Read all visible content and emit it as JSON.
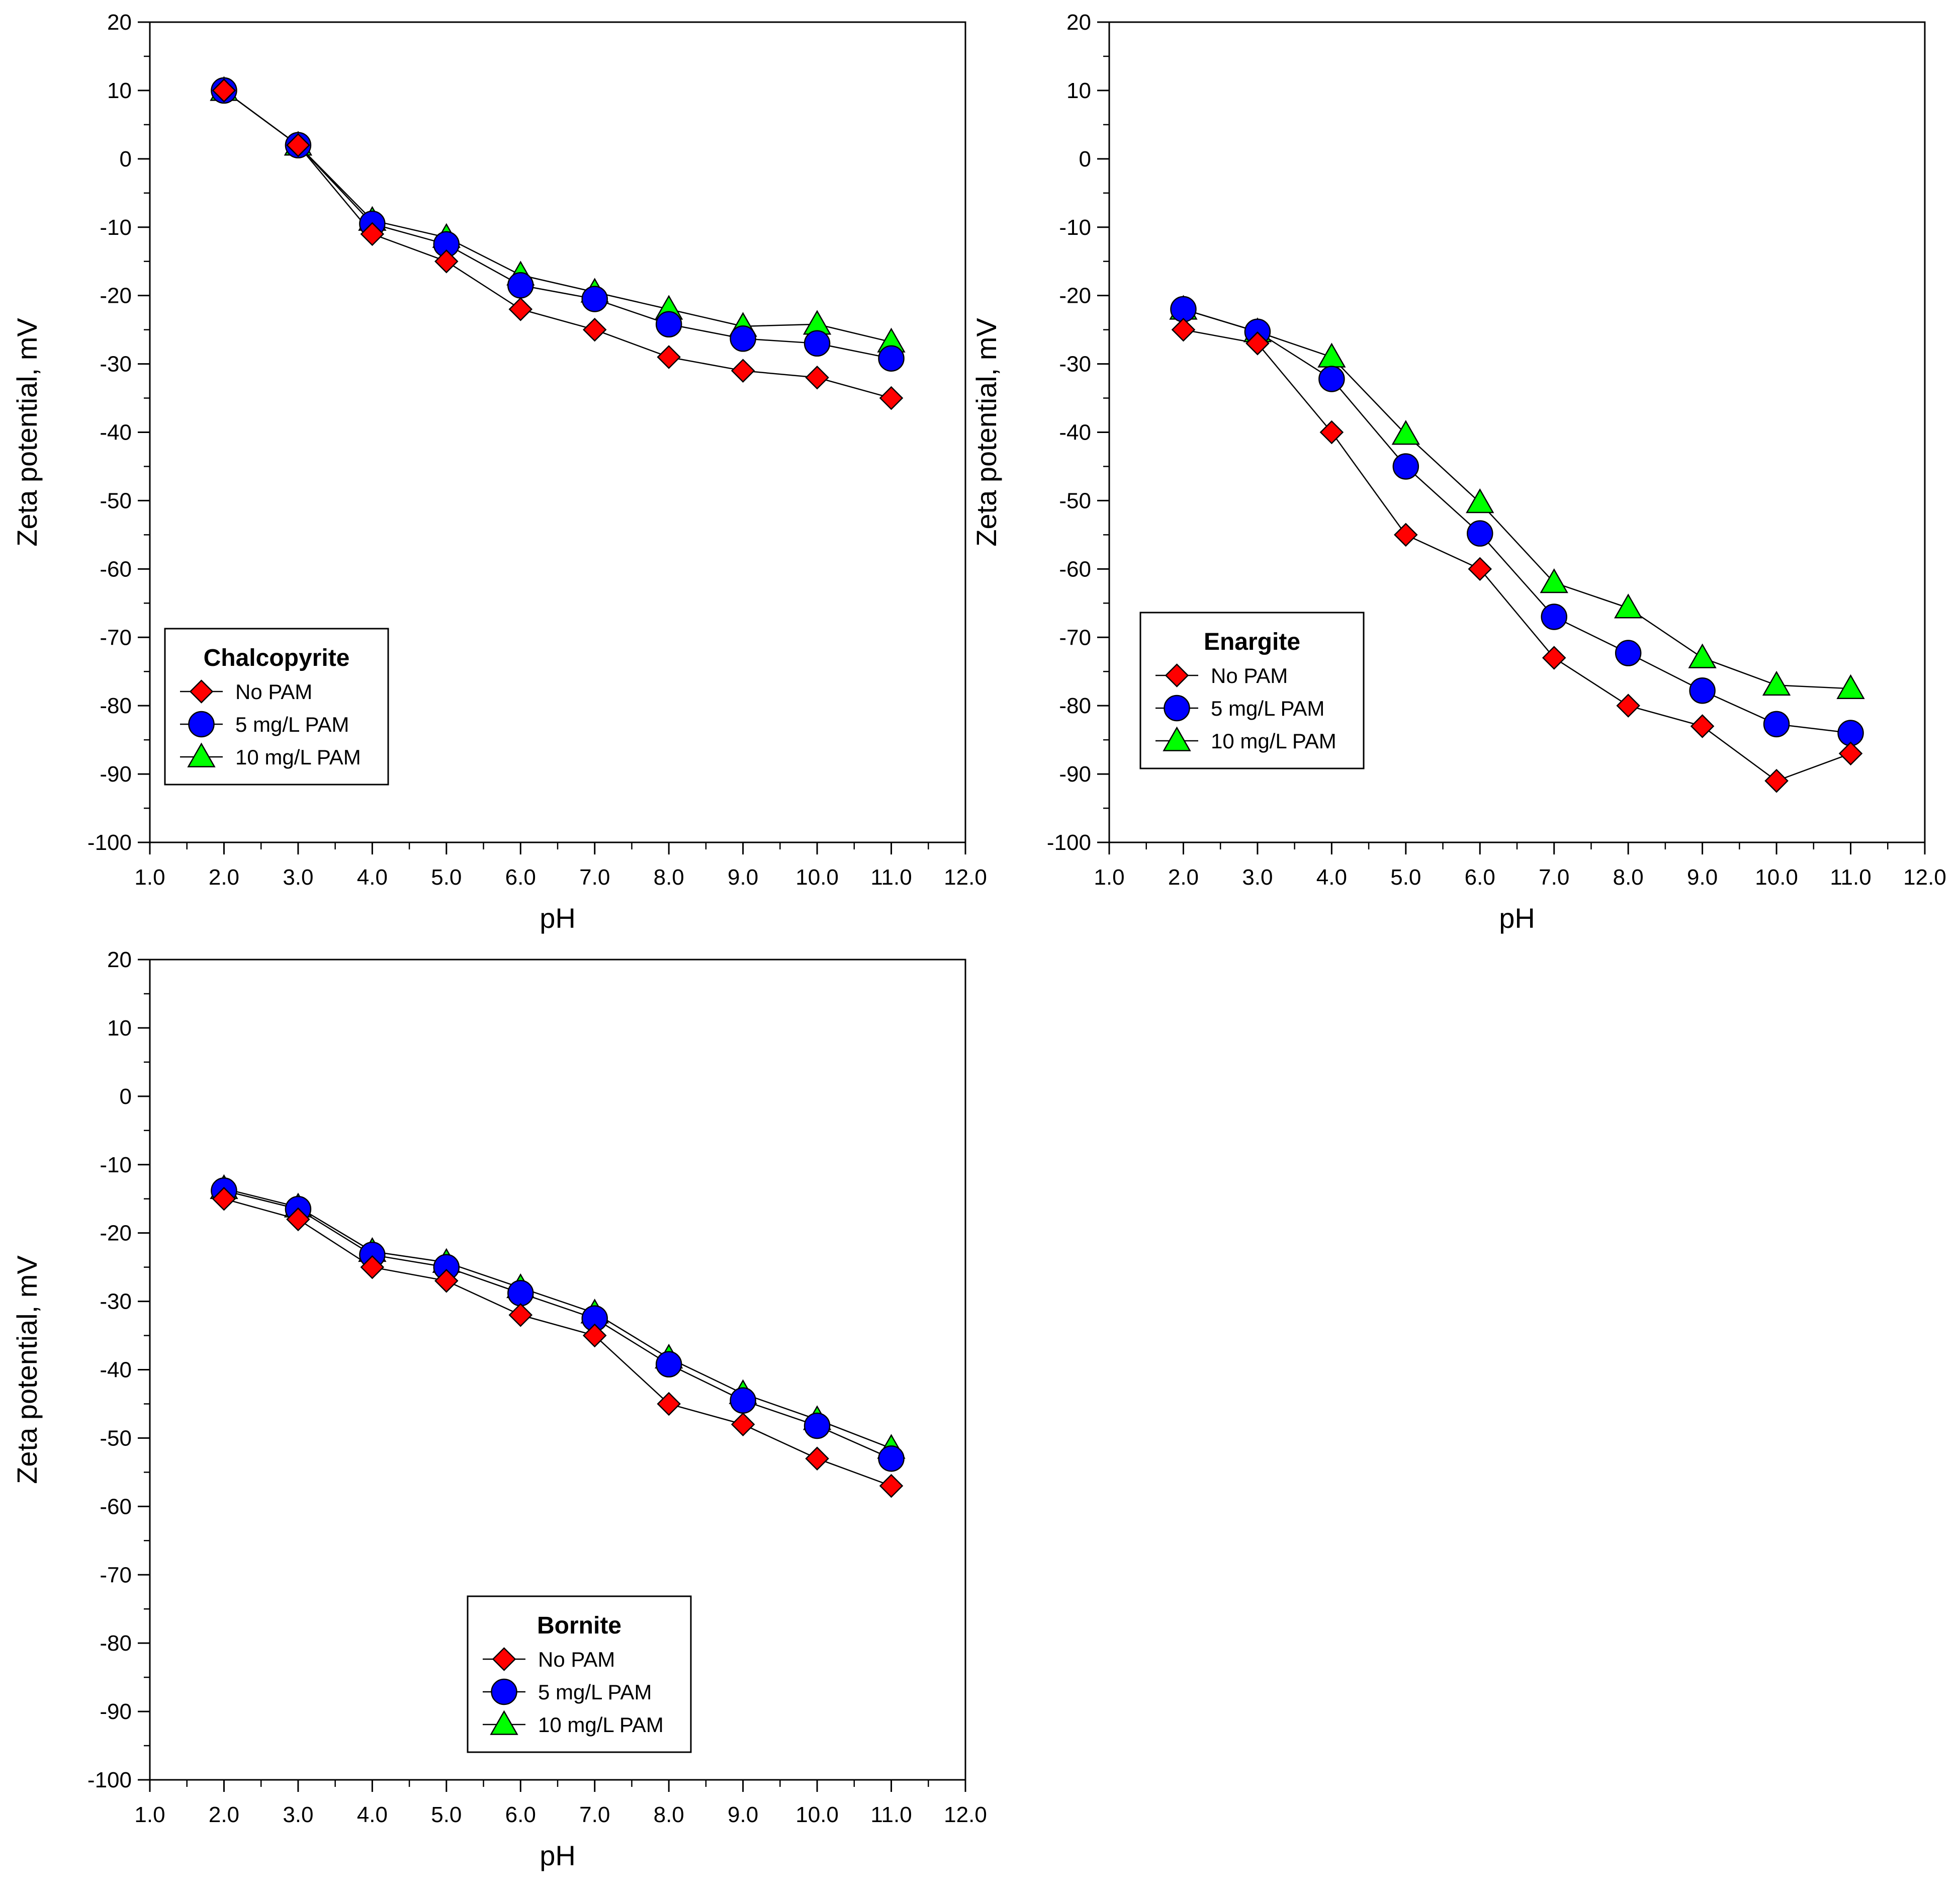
{
  "chart_data": [
    {
      "type": "line",
      "legend_title": "Chalcopyrite",
      "legend_position": "bottom-left",
      "xlabel": "pH",
      "ylabel": "Zeta potential, mV",
      "xlim": [
        1.0,
        12.0
      ],
      "ylim": [
        -100,
        20
      ],
      "x_ticks": [
        "1.0",
        "2.0",
        "3.0",
        "4.0",
        "5.0",
        "6.0",
        "7.0",
        "8.0",
        "9.0",
        "10.0",
        "11.0",
        "12.0"
      ],
      "y_ticks": [
        "20",
        "10",
        "0",
        "-10",
        "-20",
        "-30",
        "-40",
        "-50",
        "-60",
        "-70",
        "-80",
        "-90",
        "-100"
      ],
      "x": [
        2,
        3,
        4,
        5,
        6,
        7,
        8,
        9,
        10,
        11
      ],
      "series": [
        {
          "name": "No PAM",
          "marker": "diamond",
          "color": "#ff0000",
          "values": [
            10,
            2,
            -11,
            -15,
            -22,
            -25,
            -29,
            -31,
            -32,
            -35
          ]
        },
        {
          "name": "5 mg/L PAM",
          "marker": "circle",
          "color": "#0000ff",
          "values": [
            10,
            2,
            -9.5,
            -12.5,
            -18.5,
            -20.5,
            -24.2,
            -26.3,
            -27,
            -29.2
          ]
        },
        {
          "name": "10 mg/L PAM",
          "marker": "triangle",
          "color": "#00ff00",
          "values": [
            10,
            2,
            -9,
            -11.5,
            -17,
            -19.5,
            -22,
            -24.5,
            -24.2,
            -26.8
          ]
        }
      ]
    },
    {
      "type": "line",
      "legend_title": "Enargite",
      "legend_position": "bottom-left",
      "xlabel": "pH",
      "ylabel": "Zeta potential, mV",
      "xlim": [
        1.0,
        12.0
      ],
      "ylim": [
        -100,
        20
      ],
      "x_ticks": [
        "1.0",
        "2.0",
        "3.0",
        "4.0",
        "5.0",
        "6.0",
        "7.0",
        "8.0",
        "9.0",
        "10.0",
        "11.0",
        "12.0"
      ],
      "y_ticks": [
        "20",
        "10",
        "0",
        "-10",
        "-20",
        "-30",
        "-40",
        "-50",
        "-60",
        "-70",
        "-80",
        "-90",
        "-100"
      ],
      "x": [
        2,
        3,
        4,
        5,
        6,
        7,
        8,
        9,
        10,
        11
      ],
      "series": [
        {
          "name": "No PAM",
          "marker": "diamond",
          "color": "#ff0000",
          "values": [
            -25,
            -27,
            -40,
            -55,
            -60,
            -73,
            -80,
            -83,
            -91,
            -87
          ]
        },
        {
          "name": "5 mg/L PAM",
          "marker": "circle",
          "color": "#0000ff",
          "values": [
            -22,
            -25.3,
            -32.2,
            -45,
            -54.8,
            -67,
            -72.3,
            -77.8,
            -82.7,
            -84
          ]
        },
        {
          "name": "10 mg/L PAM",
          "marker": "triangle",
          "color": "#00ff00",
          "values": [
            -22,
            -25.3,
            -29,
            -40.3,
            -50.3,
            -62,
            -65.7,
            -73,
            -77,
            -77.5
          ]
        }
      ]
    },
    {
      "type": "line",
      "legend_title": "Bornite",
      "legend_position": "bottom-center",
      "xlabel": "pH",
      "ylabel": "Zeta potential, mV",
      "xlim": [
        1.0,
        12.0
      ],
      "ylim": [
        -100,
        20
      ],
      "x_ticks": [
        "1.0",
        "2.0",
        "3.0",
        "4.0",
        "5.0",
        "6.0",
        "7.0",
        "8.0",
        "9.0",
        "10.0",
        "11.0",
        "12.0"
      ],
      "y_ticks": [
        "20",
        "10",
        "0",
        "-10",
        "-20",
        "-30",
        "-40",
        "-50",
        "-60",
        "-70",
        "-80",
        "-90",
        "-100"
      ],
      "x": [
        2,
        3,
        4,
        5,
        6,
        7,
        8,
        9,
        10,
        11
      ],
      "series": [
        {
          "name": "No PAM",
          "marker": "diamond",
          "color": "#ff0000",
          "values": [
            -15,
            -18,
            -25,
            -27,
            -32,
            -35,
            -45,
            -48,
            -53,
            -57
          ]
        },
        {
          "name": "5 mg/L PAM",
          "marker": "circle",
          "color": "#0000ff",
          "values": [
            -13.8,
            -16.5,
            -23.2,
            -25,
            -28.8,
            -32.5,
            -39.2,
            -44.5,
            -48.2,
            -53
          ]
        },
        {
          "name": "10 mg/L PAM",
          "marker": "triangle",
          "color": "#00ff00",
          "values": [
            -13.5,
            -16.2,
            -22.7,
            -24.3,
            -28,
            -31.7,
            -38.3,
            -43.5,
            -47.3,
            -51.5
          ]
        }
      ]
    }
  ]
}
